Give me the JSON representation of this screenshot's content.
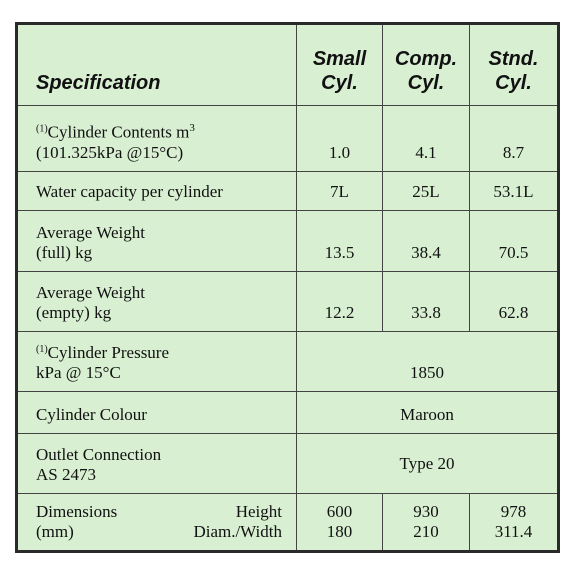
{
  "header": {
    "specification": "Specification",
    "columns": [
      [
        "Small",
        "Cyl."
      ],
      [
        "Comp.",
        "Cyl."
      ],
      [
        "Stnd.",
        "Cyl."
      ]
    ]
  },
  "rows": [
    {
      "note": "(1)",
      "lines": [
        "Cylinder Contents m",
        "(101.325kPa @15°C)"
      ],
      "sup": "3",
      "values": [
        "1.0",
        "4.1",
        "8.7"
      ]
    },
    {
      "lines": [
        "Water capacity per cylinder"
      ],
      "values": [
        "7L",
        "25L",
        "53.1L"
      ]
    },
    {
      "lines": [
        "Average Weight",
        "(full) kg"
      ],
      "values": [
        "13.5",
        "38.4",
        "70.5"
      ]
    },
    {
      "lines": [
        "Average Weight",
        "(empty) kg"
      ],
      "values": [
        "12.2",
        "33.8",
        "62.8"
      ]
    },
    {
      "note": "(1)",
      "lines": [
        "Cylinder Pressure",
        "kPa @ 15°C"
      ],
      "value": "1850"
    },
    {
      "lines": [
        "Cylinder Colour"
      ],
      "value": "Maroon"
    },
    {
      "lines": [
        "Outlet Connection",
        "AS 2473"
      ],
      "value": "Type 20"
    },
    {
      "lines": [
        [
          "Dimensions",
          "Height"
        ],
        [
          "(mm)",
          "Diam./Width"
        ]
      ],
      "values": [
        [
          "600",
          "180"
        ],
        [
          "930",
          "210"
        ],
        [
          "978",
          "311.4"
        ]
      ]
    }
  ]
}
